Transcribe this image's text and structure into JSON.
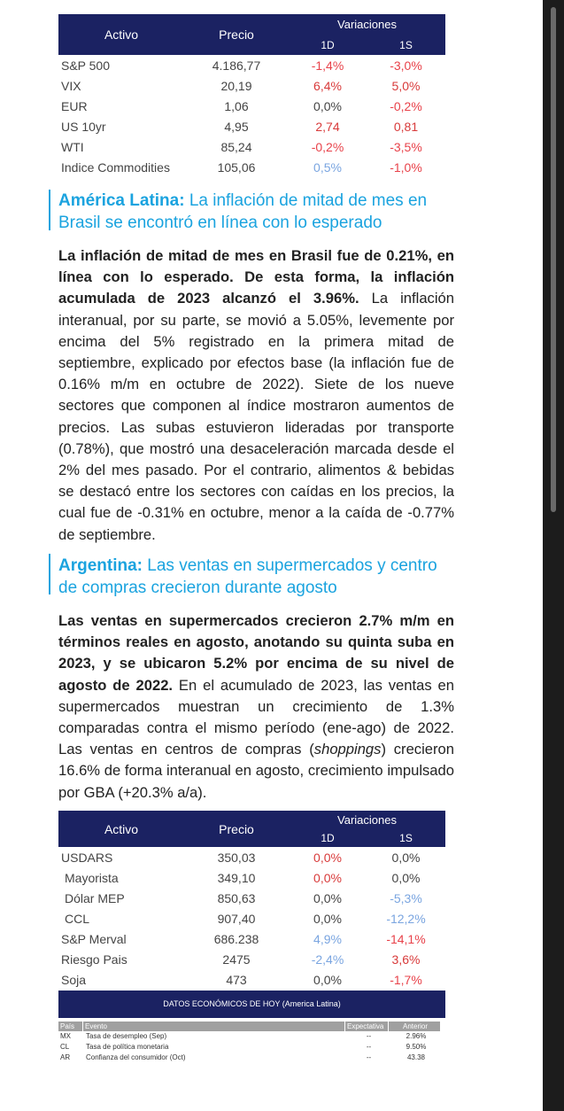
{
  "table1": {
    "headers": {
      "activo": "Activo",
      "precio": "Precio",
      "variaciones": "Variaciones",
      "d1": "1D",
      "s1": "1S"
    },
    "rows": [
      {
        "name": "S&P 500",
        "price": "4.186,77",
        "d1": "-1,4%",
        "s1": "-3,0%"
      },
      {
        "name": "VIX",
        "price": "20,19",
        "d1": "6,4%",
        "s1": "5,0%"
      },
      {
        "name": "EUR",
        "price": "1,06",
        "d1": "0,0%",
        "s1": "-0,2%"
      },
      {
        "name": "US 10yr",
        "price": "4,95",
        "d1": "2,74",
        "s1": "0,81"
      },
      {
        "name": "WTI",
        "price": "85,24",
        "d1": "-0,2%",
        "s1": "-3,5%"
      },
      {
        "name": "Indice Commodities",
        "price": "105,06",
        "d1": "0,5%",
        "s1": "-1,0%"
      }
    ]
  },
  "section1": {
    "title_bold": "América Latina:",
    "title_rest": " La inflación de mitad de mes en Brasil se encontró en línea con lo esperado",
    "body_bold": "La inflación de mitad de mes en Brasil fue de 0.21%, en línea con lo esperado. De esta forma, la inflación acumulada de 2023 alcanzó el 3.96%.",
    "body_rest": " La inflación interanual, por su parte, se movió a 5.05%, levemente por encima del 5% registrado en la primera mitad de septiembre, explicado por efectos base (la inflación fue de 0.16% m/m en octubre de 2022). Siete de los nueve sectores que componen al índice mostraron aumentos de precios. Las subas estuvieron lideradas por transporte (0.78%), que mostró una desaceleración marcada desde el 2% del mes pasado. Por el contrario, alimentos & bebidas se destacó entre los sectores con caídas en los precios, la cual fue de -0.31% en octubre, menor a la caída de -0.77% de septiembre."
  },
  "section2": {
    "title_bold": "Argentina:",
    "title_rest": " Las ventas en supermercados y centro de compras crecieron durante agosto",
    "body_bold": "Las ventas en supermercados crecieron 2.7% m/m en términos reales en agosto, anotando su quinta suba en 2023, y se ubicaron 5.2% por encima de su nivel de agosto de 2022.",
    "body_rest1": " En el acumulado de 2023, las ventas en supermercados muestran un crecimiento de 1.3% comparadas contra el mismo período (ene-ago) de 2022. Las ventas en centros de compras (",
    "body_italic": "shoppings",
    "body_rest2": ") crecieron 16.6% de forma interanual en agosto, crecimiento impulsado por GBA (+20.3% a/a)."
  },
  "table2": {
    "headers": {
      "activo": "Activo",
      "precio": "Precio",
      "variaciones": "Variaciones",
      "d1": "1D",
      "s1": "1S"
    },
    "rows": [
      {
        "name": "USDARS",
        "price": "350,03",
        "d1": "0,0%",
        "s1": "0,0%"
      },
      {
        "name": "Mayorista",
        "price": "349,10",
        "d1": "0,0%",
        "s1": "0,0%"
      },
      {
        "name": "Dólar MEP",
        "price": "850,63",
        "d1": "0,0%",
        "s1": "-5,3%"
      },
      {
        "name": "CCL",
        "price": "907,40",
        "d1": "0,0%",
        "s1": "-12,2%"
      },
      {
        "name": "S&P Merval",
        "price": "686.238",
        "d1": "4,9%",
        "s1": "-14,1%"
      },
      {
        "name": "Riesgo Pais",
        "price": "2475",
        "d1": "-2,4%",
        "s1": "3,6%"
      },
      {
        "name": "Soja",
        "price": "473",
        "d1": "0,0%",
        "s1": "-1,7%"
      }
    ]
  },
  "eco": {
    "title": "DATOS ECONÓMICOS DE HOY (America Latina)",
    "cols": {
      "pais": "País",
      "evento": "Evento",
      "expectativa": "Expectativa",
      "anterior": "Anterior"
    },
    "rows": [
      {
        "pais": "MX",
        "evento": "Tasa de desempleo (Sep)",
        "exp": "--",
        "ant": "2.96%"
      },
      {
        "pais": "CL",
        "evento": "Tasa de política monetaria",
        "exp": "--",
        "ant": "9.50%"
      },
      {
        "pais": "AR",
        "evento": "Confianza del consumidor (Oct)",
        "exp": "--",
        "ant": "43.38"
      }
    ]
  }
}
